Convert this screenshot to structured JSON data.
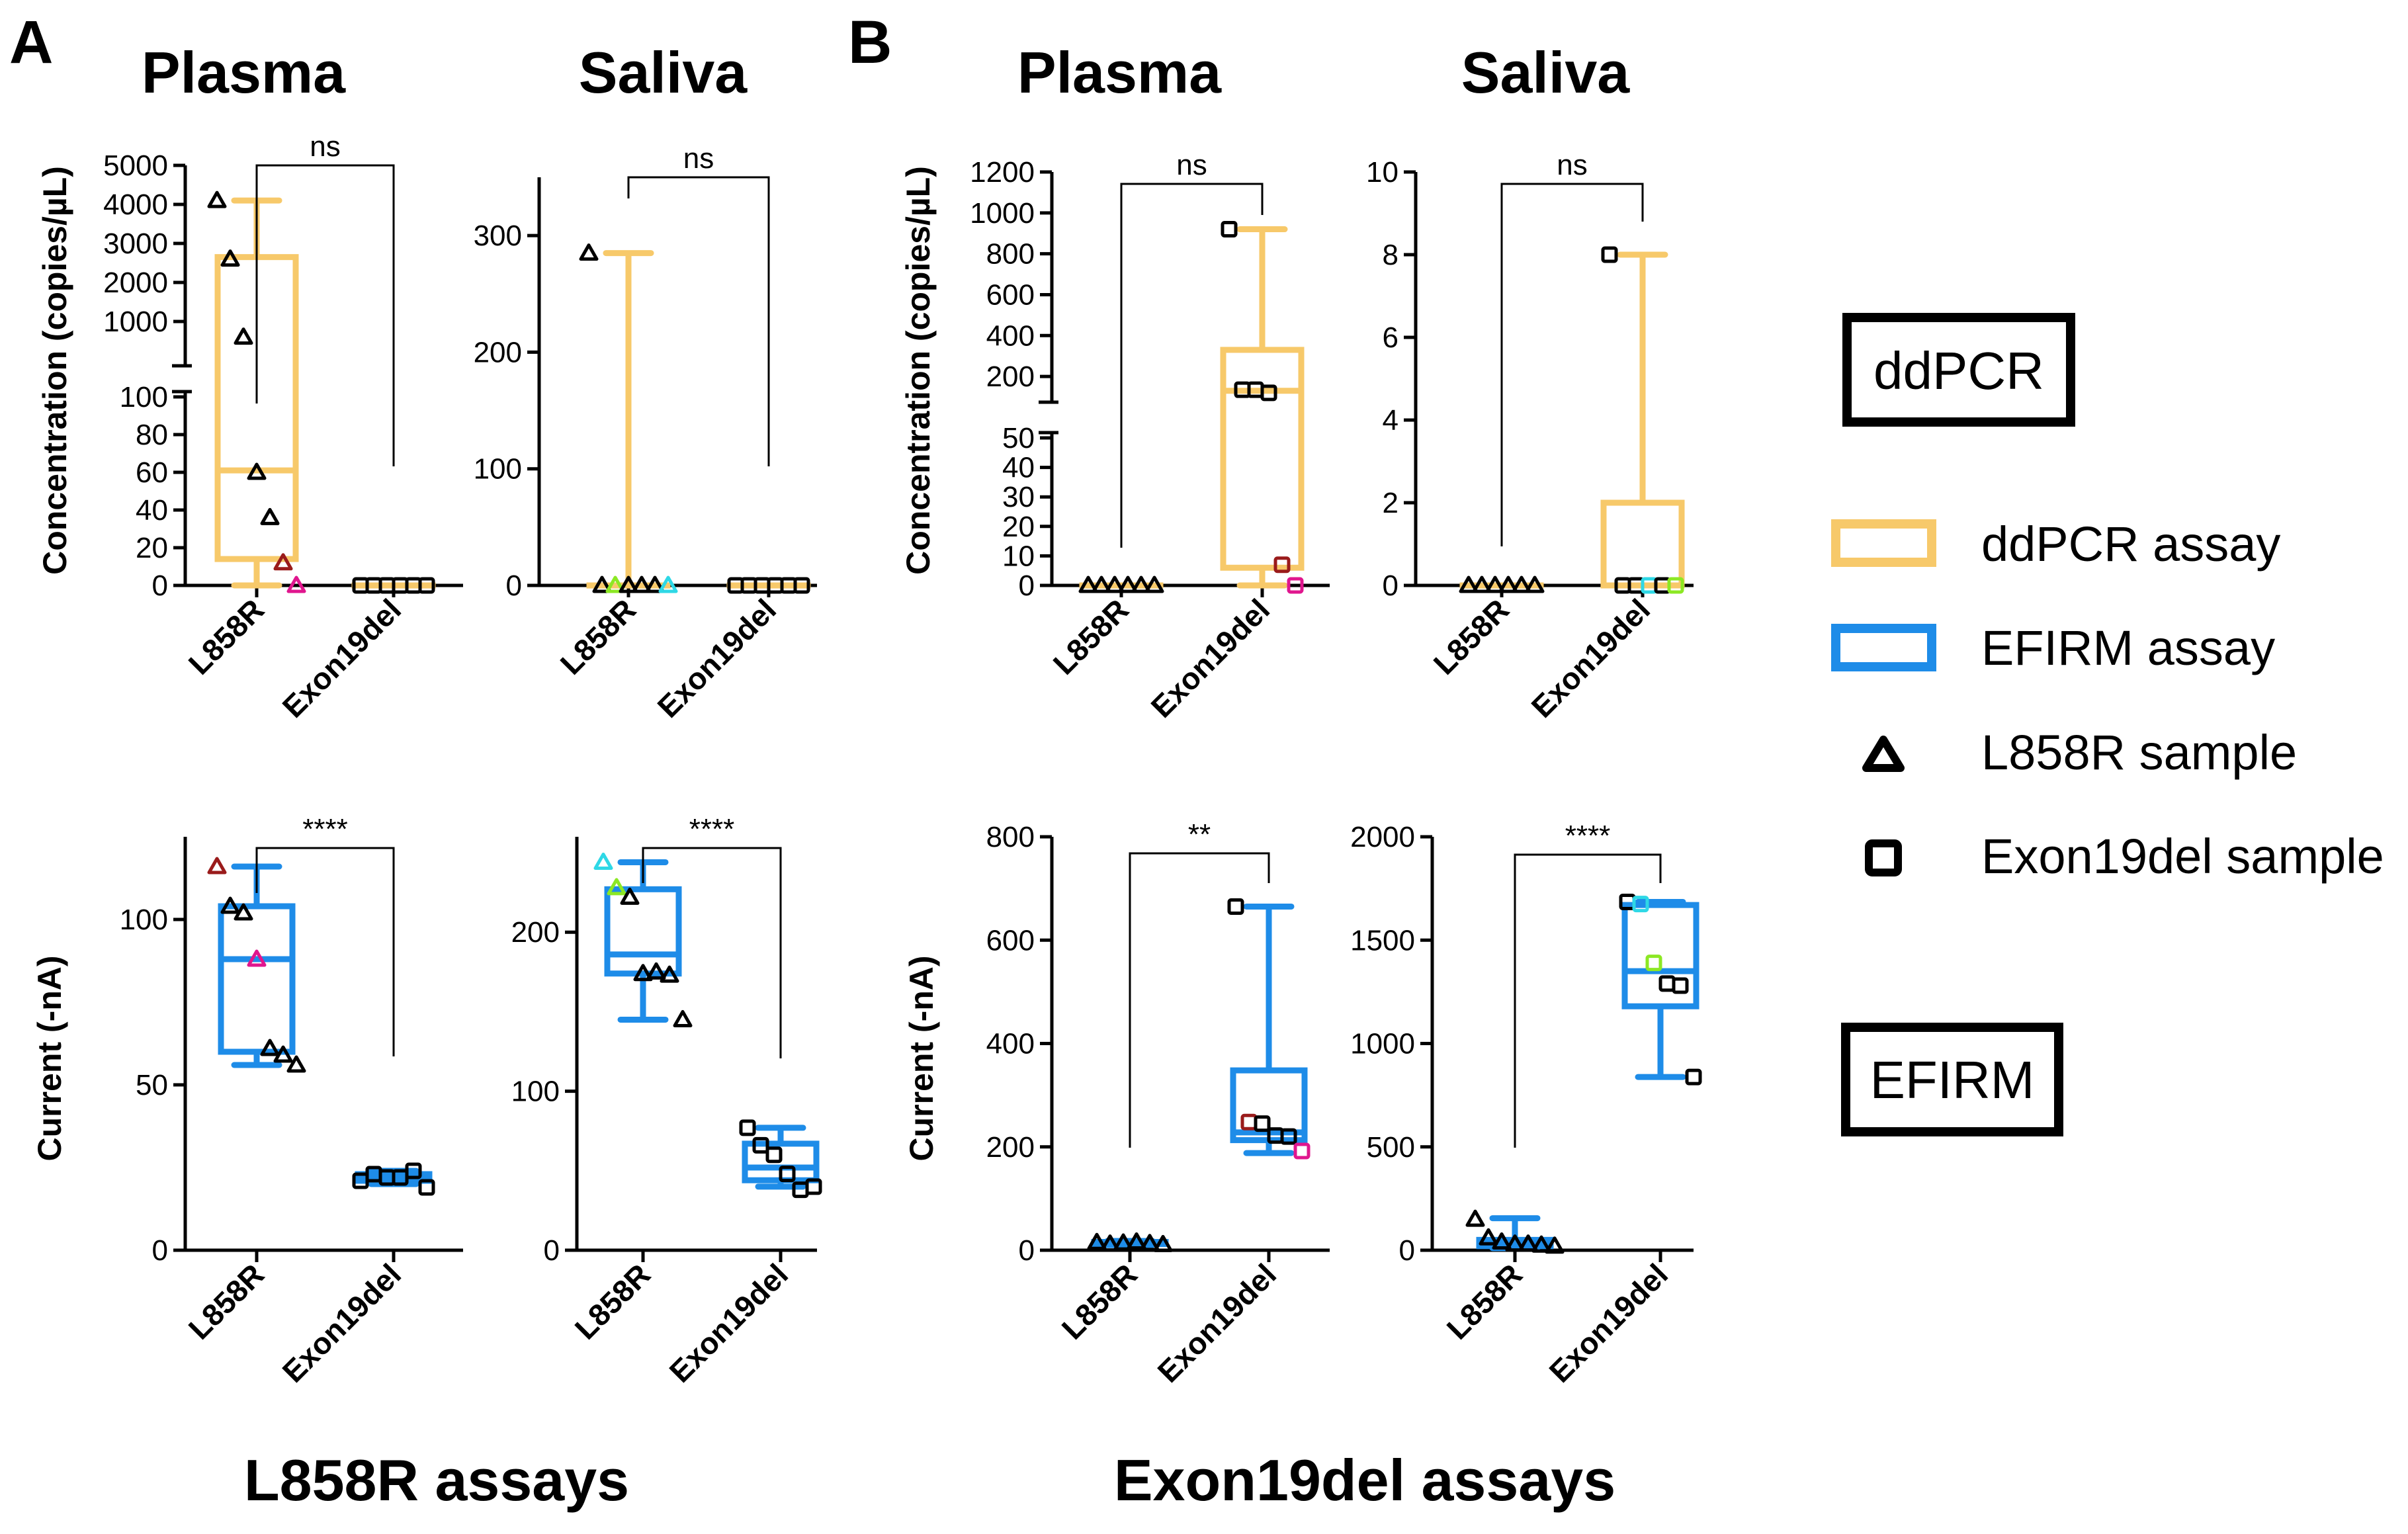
{
  "panels": {
    "A": {
      "letter": "A",
      "footer": "L858R assays"
    },
    "B": {
      "letter": "B",
      "footer": "Exon19del assays"
    }
  },
  "sample_titles": {
    "plasma": "Plasma",
    "saliva": "Saliva"
  },
  "axis_labels": {
    "concentration": "Concentration (copies/µL)",
    "current": "Current (-nA)"
  },
  "categories": [
    "L858R",
    "Exon19del"
  ],
  "legend": {
    "ddpcr_badge": "ddPCR",
    "efirm_badge": "EFIRM",
    "ddpcr_assay": "ddPCR assay",
    "efirm_assay": "EFIRM assay",
    "l858r_sample": "L858R sample",
    "exon19del_sample": "Exon19del sample"
  },
  "colors": {
    "ddpcr": "#F7C96A",
    "efirm": "#1E8CE8",
    "black": "#000000",
    "darkred": "#9A1B1B",
    "magenta": "#E0168E",
    "cyan": "#2ED8E6",
    "lime": "#8CE824"
  },
  "chart_data": [
    {
      "id": "A-ddpcr-plasma",
      "type": "box",
      "assay": "ddPCR",
      "sample": "Plasma",
      "ylabel": "Concentration (copies/µL)",
      "categories": [
        "L858R",
        "Exon19del"
      ],
      "ylim_lower": [
        0,
        100
      ],
      "ylim_upper": [
        0,
        5000
      ],
      "axis_break": true,
      "yticks_lower": [
        0,
        20,
        40,
        60,
        80,
        100
      ],
      "yticks_upper": [
        1000,
        2000,
        3000,
        4000,
        5000
      ],
      "significance": "ns",
      "series": [
        {
          "name": "L858R",
          "min": 0,
          "q1": 14,
          "median": 61,
          "q3": 2650,
          "max": 4100,
          "points": [
            4100,
            2600,
            600,
            60,
            36,
            12,
            0
          ],
          "point_colors": [
            "black",
            "black",
            "black",
            "black",
            "black",
            "darkred",
            "magenta"
          ]
        },
        {
          "name": "Exon19del",
          "min": 0,
          "q1": 0,
          "median": 0,
          "q3": 0,
          "max": 0,
          "points": [
            0,
            0,
            0,
            0,
            0,
            0
          ],
          "point_colors": [
            "black",
            "black",
            "black",
            "black",
            "black",
            "black"
          ]
        }
      ]
    },
    {
      "id": "A-ddpcr-saliva",
      "type": "box",
      "assay": "ddPCR",
      "sample": "Saliva",
      "categories": [
        "L858R",
        "Exon19del"
      ],
      "ylim": [
        0,
        350
      ],
      "yticks": [
        0,
        100,
        200,
        300
      ],
      "significance": "ns",
      "series": [
        {
          "name": "L858R",
          "min": 0,
          "q1": 0,
          "median": 0,
          "q3": 0,
          "max": 285,
          "points": [
            285,
            0,
            0,
            0,
            0,
            0,
            0
          ],
          "point_colors": [
            "black",
            "black",
            "lime",
            "black",
            "black",
            "black",
            "cyan"
          ]
        },
        {
          "name": "Exon19del",
          "min": 0,
          "q1": 0,
          "median": 0,
          "q3": 0,
          "max": 0,
          "points": [
            0,
            0,
            0,
            0,
            0,
            0
          ],
          "point_colors": [
            "black",
            "black",
            "black",
            "black",
            "black",
            "black"
          ]
        }
      ]
    },
    {
      "id": "B-ddpcr-plasma",
      "type": "box",
      "assay": "ddPCR",
      "sample": "Plasma",
      "ylabel": "Concentration (copies/µL)",
      "categories": [
        "L858R",
        "Exon19del"
      ],
      "ylim_lower": [
        0,
        50
      ],
      "ylim_upper": [
        100,
        1200
      ],
      "axis_break": true,
      "yticks_lower": [
        0,
        10,
        20,
        30,
        40,
        50
      ],
      "yticks_upper": [
        200,
        400,
        600,
        800,
        1000,
        1200
      ],
      "significance": "ns",
      "series": [
        {
          "name": "L858R",
          "min": 0,
          "q1": 0,
          "median": 0,
          "q3": 0,
          "max": 0,
          "points": [
            0,
            0,
            0,
            0,
            0,
            0
          ],
          "point_colors": [
            "black",
            "black",
            "black",
            "black",
            "black",
            "black"
          ]
        },
        {
          "name": "Exon19del",
          "min": 0,
          "q1": 6,
          "median": 130,
          "q3": 330,
          "max": 920,
          "points": [
            920,
            135,
            135,
            120,
            7,
            0
          ],
          "point_colors": [
            "black",
            "black",
            "black",
            "black",
            "darkred",
            "magenta"
          ]
        }
      ]
    },
    {
      "id": "B-ddpcr-saliva",
      "type": "box",
      "assay": "ddPCR",
      "sample": "Saliva",
      "categories": [
        "L858R",
        "Exon19del"
      ],
      "ylim": [
        0,
        10
      ],
      "yticks": [
        0,
        2,
        4,
        6,
        8,
        10
      ],
      "significance": "ns",
      "series": [
        {
          "name": "L858R",
          "min": 0,
          "q1": 0,
          "median": 0,
          "q3": 0,
          "max": 0,
          "points": [
            0,
            0,
            0,
            0,
            0,
            0
          ],
          "point_colors": [
            "black",
            "black",
            "black",
            "black",
            "black",
            "black"
          ]
        },
        {
          "name": "Exon19del",
          "min": 0,
          "q1": 0,
          "median": 0,
          "q3": 2,
          "max": 8,
          "points": [
            8,
            0,
            0,
            0,
            0,
            0
          ],
          "point_colors": [
            "black",
            "black",
            "black",
            "cyan",
            "black",
            "lime"
          ]
        }
      ]
    },
    {
      "id": "A-efirm-plasma",
      "type": "box",
      "assay": "EFIRM",
      "sample": "Plasma",
      "ylabel": "Current (-nA)",
      "categories": [
        "L858R",
        "Exon19del"
      ],
      "ylim": [
        0,
        125
      ],
      "yticks": [
        0,
        50,
        100
      ],
      "significance": "****",
      "series": [
        {
          "name": "L858R",
          "min": 56,
          "q1": 60,
          "median": 88,
          "q3": 104,
          "max": 116,
          "points": [
            116,
            104,
            102,
            88,
            61,
            59,
            56
          ],
          "point_colors": [
            "darkred",
            "black",
            "black",
            "magenta",
            "black",
            "black",
            "black"
          ]
        },
        {
          "name": "Exon19del",
          "min": 20,
          "q1": 21,
          "median": 22,
          "q3": 23,
          "max": 24,
          "points": [
            21,
            23,
            22,
            22,
            24,
            19
          ],
          "point_colors": [
            "black",
            "black",
            "black",
            "black",
            "black",
            "black"
          ]
        }
      ]
    },
    {
      "id": "A-efirm-saliva",
      "type": "box",
      "assay": "EFIRM",
      "sample": "Saliva",
      "categories": [
        "L858R",
        "Exon19del"
      ],
      "ylim": [
        0,
        260
      ],
      "yticks": [
        0,
        100,
        200
      ],
      "significance": "****",
      "series": [
        {
          "name": "L858R",
          "min": 145,
          "q1": 174,
          "median": 186,
          "q3": 227,
          "max": 244,
          "points": [
            244,
            228,
            222,
            174,
            175,
            173,
            145
          ],
          "point_colors": [
            "cyan",
            "lime",
            "black",
            "black",
            "black",
            "black",
            "black"
          ]
        },
        {
          "name": "Exon19del",
          "min": 40,
          "q1": 44,
          "median": 52,
          "q3": 67,
          "max": 77,
          "points": [
            77,
            66,
            60,
            48,
            38,
            40
          ],
          "point_colors": [
            "black",
            "black",
            "black",
            "black",
            "black",
            "black"
          ]
        }
      ]
    },
    {
      "id": "B-efirm-plasma",
      "type": "box",
      "assay": "EFIRM",
      "sample": "Plasma",
      "ylabel": "Current (-nA)",
      "categories": [
        "L858R",
        "Exon19del"
      ],
      "ylim": [
        0,
        800
      ],
      "yticks": [
        0,
        200,
        400,
        600,
        800
      ],
      "significance": "**",
      "series": [
        {
          "name": "L858R",
          "min": 10,
          "q1": 12,
          "median": 14,
          "q3": 16,
          "max": 18,
          "points": [
            15,
            12,
            14,
            16,
            13,
            11
          ],
          "point_colors": [
            "black",
            "black",
            "black",
            "black",
            "black",
            "black"
          ]
        },
        {
          "name": "Exon19del",
          "min": 188,
          "q1": 213,
          "median": 228,
          "q3": 348,
          "max": 665,
          "points": [
            665,
            248,
            245,
            222,
            220,
            192
          ],
          "point_colors": [
            "black",
            "darkred",
            "black",
            "black",
            "black",
            "magenta"
          ]
        }
      ]
    },
    {
      "id": "B-efirm-saliva",
      "type": "box",
      "assay": "EFIRM",
      "sample": "Saliva",
      "categories": [
        "L858R",
        "Exon19del"
      ],
      "ylim": [
        0,
        2000
      ],
      "yticks": [
        0,
        500,
        1000,
        1500,
        2000
      ],
      "significance": "****",
      "series": [
        {
          "name": "L858R",
          "min": 10,
          "q1": 20,
          "median": 35,
          "q3": 50,
          "max": 155,
          "points": [
            150,
            60,
            40,
            30,
            30,
            25,
            20
          ],
          "point_colors": [
            "black",
            "black",
            "black",
            "black",
            "black",
            "black",
            "black"
          ]
        },
        {
          "name": "Exon19del",
          "min": 838,
          "q1": 1180,
          "median": 1350,
          "q3": 1670,
          "max": 1685,
          "points": [
            1685,
            1675,
            1390,
            1290,
            1280,
            838
          ],
          "point_colors": [
            "black",
            "cyan",
            "lime",
            "black",
            "black",
            "black"
          ]
        }
      ]
    }
  ]
}
